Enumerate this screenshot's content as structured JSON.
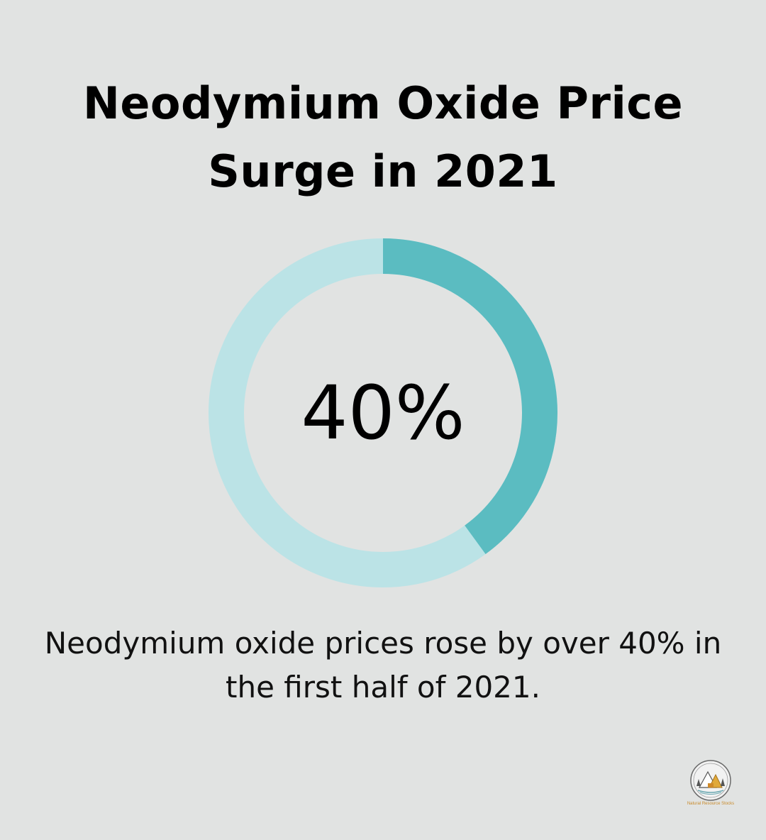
{
  "title": {
    "line1": "Neodymium Oxide Price",
    "line2": "Surge in 2021"
  },
  "chart_data": {
    "type": "pie",
    "style": "donut",
    "value": 40,
    "value_label": "40%",
    "max": 100,
    "colors": {
      "filled": "#5bbcc1",
      "remaining": "#bbe3e6"
    }
  },
  "caption": {
    "line1": "Neodymium oxide prices rose by over 40% in",
    "line2": "the first half of 2021."
  },
  "logo": {
    "icon": "mountain-forest-logo-icon",
    "text": "Natural Resource Stocks"
  }
}
